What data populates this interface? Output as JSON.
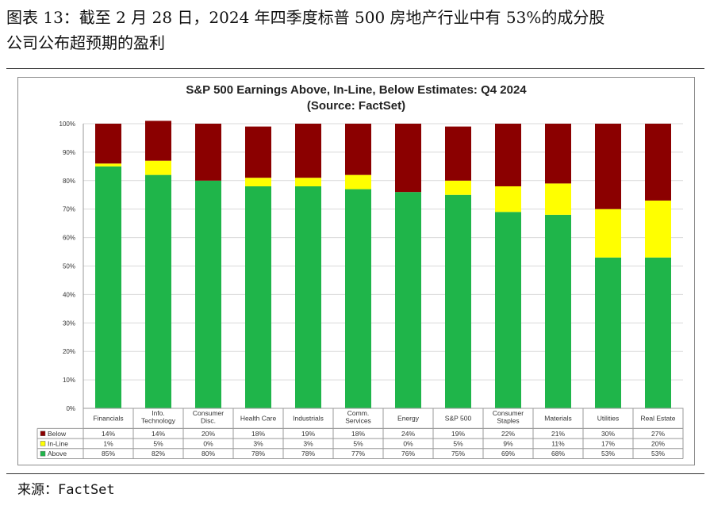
{
  "caption": {
    "line1": "图表 13：截至 2 月 28 日，2024 年四季度标普 500 房地产行业中有 53%的成分股",
    "line2": "公司公布超预期的盈利"
  },
  "source": "来源：FactSet",
  "colors": {
    "above": "#1fb54a",
    "inline": "#ffff00",
    "below": "#8b0000"
  },
  "chart_data": {
    "type": "bar",
    "stacked": true,
    "title": "S&P 500 Earnings Above, In-Line, Below Estimates: Q4 2024",
    "subtitle": "(Source: FactSet)",
    "categories": [
      [
        "Financials"
      ],
      [
        "Info.",
        "Technology"
      ],
      [
        "Consumer",
        "Disc."
      ],
      [
        "Health Care"
      ],
      [
        "Industrials"
      ],
      [
        "Comm.",
        "Services"
      ],
      [
        "Energy"
      ],
      [
        "S&P 500"
      ],
      [
        "Consumer",
        "Staples"
      ],
      [
        "Materials"
      ],
      [
        "Utilities"
      ],
      [
        "Real Estate"
      ]
    ],
    "ylim": [
      0,
      100
    ],
    "yticks": [
      "0%",
      "10%",
      "20%",
      "30%",
      "40%",
      "50%",
      "60%",
      "70%",
      "80%",
      "90%",
      "100%"
    ],
    "legend_placement": "table-below",
    "series": [
      {
        "name": "Below",
        "color": "#8b0000",
        "values": [
          14,
          14,
          20,
          18,
          19,
          18,
          24,
          19,
          22,
          21,
          30,
          27
        ],
        "labels": [
          "14%",
          "14%",
          "20%",
          "18%",
          "19%",
          "18%",
          "24%",
          "19%",
          "22%",
          "21%",
          "30%",
          "27%"
        ]
      },
      {
        "name": "In-Line",
        "color": "#ffff00",
        "values": [
          1,
          5,
          0,
          3,
          3,
          5,
          0,
          5,
          9,
          11,
          17,
          20
        ],
        "labels": [
          "1%",
          "5%",
          "0%",
          "3%",
          "3%",
          "5%",
          "0%",
          "5%",
          "9%",
          "11%",
          "17%",
          "20%"
        ]
      },
      {
        "name": "Above",
        "color": "#1fb54a",
        "values": [
          85,
          82,
          80,
          78,
          78,
          77,
          76,
          75,
          69,
          68,
          53,
          53
        ],
        "labels": [
          "85%",
          "82%",
          "80%",
          "78%",
          "78%",
          "77%",
          "76%",
          "75%",
          "69%",
          "68%",
          "53%",
          "53%"
        ]
      }
    ]
  }
}
